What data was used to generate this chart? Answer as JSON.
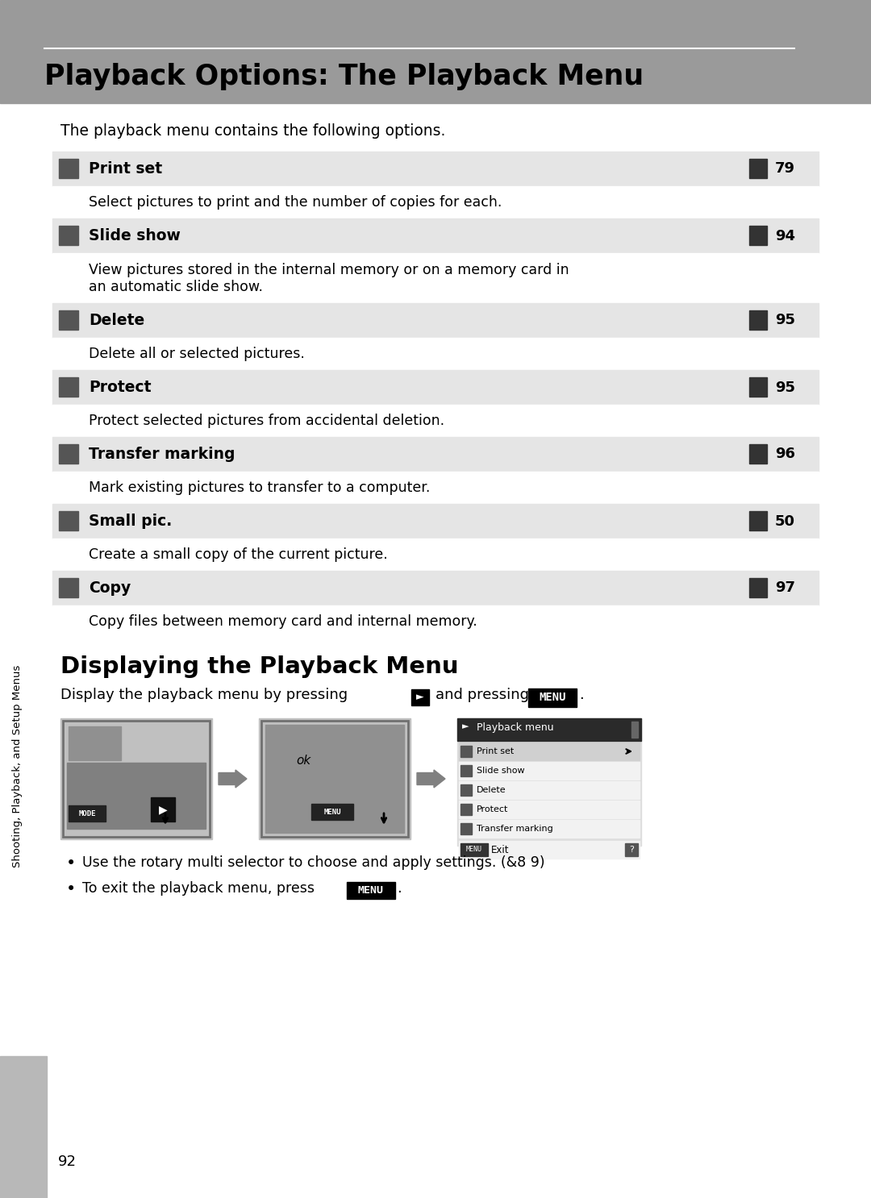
{
  "page_bg": "#ffffff",
  "header_bg": "#9a9a9a",
  "header_text": "Playback Options: The Playback Menu",
  "intro_text": "The playback menu contains the following options.",
  "menu_items": [
    {
      "name": "Print set",
      "page_ref": "79",
      "description": "Select pictures to print and the number of copies for each.",
      "desc_lines": 1
    },
    {
      "name": "Slide show",
      "page_ref": "94",
      "description": "View pictures stored in the internal memory or on a memory card in\nan automatic slide show.",
      "desc_lines": 2
    },
    {
      "name": "Delete",
      "page_ref": "95",
      "description": "Delete all or selected pictures.",
      "desc_lines": 1
    },
    {
      "name": "Protect",
      "page_ref": "95",
      "description": "Protect selected pictures from accidental deletion.",
      "desc_lines": 1
    },
    {
      "name": "Transfer marking",
      "page_ref": "96",
      "description": "Mark existing pictures to transfer to a computer.",
      "desc_lines": 1
    },
    {
      "name": "Small pic.",
      "page_ref": "50",
      "description": "Create a small copy of the current picture.",
      "desc_lines": 1
    },
    {
      "name": "Copy",
      "page_ref": "97",
      "description": "Copy files between memory card and internal memory.",
      "desc_lines": 1
    }
  ],
  "section2_title": "Displaying the Playback Menu",
  "bullet1": "Use the rotary multi selector to choose and apply settings. (&8 9)",
  "sidebar_text": "Shooting, Playback, and Setup Menus",
  "page_number": "92",
  "row_bg": "#e5e5e5",
  "screen_items": [
    [
      "Print set",
      true
    ],
    [
      "Slide show",
      false
    ],
    [
      "Delete",
      false
    ],
    [
      "Protect",
      false
    ],
    [
      "Transfer marking",
      false
    ]
  ]
}
